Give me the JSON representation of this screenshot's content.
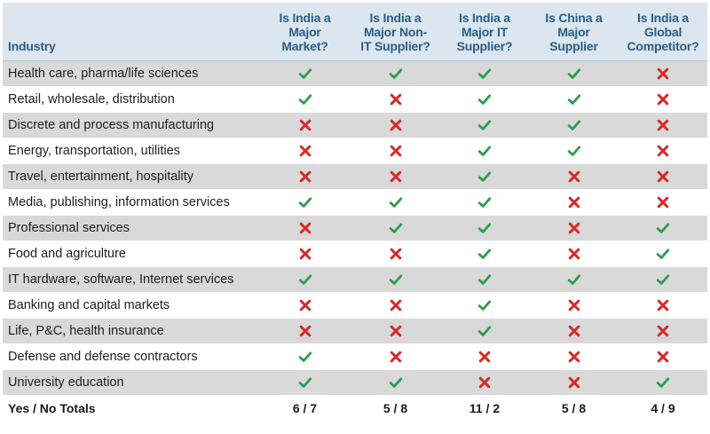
{
  "table": {
    "headers": [
      "Industry",
      "Is India a\nMajor\nMarket?",
      "Is India a\nMajor Non-\nIT Supplier?",
      "Is India a\nMajor IT\nSupplier?",
      "Is China a\nMajor\nSupplier",
      "Is India a\nGlobal\nCompetitor?"
    ],
    "rows": [
      {
        "industry": "Health care, pharma/life sciences",
        "marks": [
          "yes",
          "yes",
          "yes",
          "yes",
          "no"
        ]
      },
      {
        "industry": "Retail, wholesale, distribution",
        "marks": [
          "yes",
          "no",
          "yes",
          "yes",
          "no"
        ]
      },
      {
        "industry": "Discrete and process manufacturing",
        "marks": [
          "no",
          "no",
          "yes",
          "yes",
          "no"
        ]
      },
      {
        "industry": "Energy, transportation, utilities",
        "marks": [
          "no",
          "no",
          "yes",
          "yes",
          "no"
        ]
      },
      {
        "industry": "Travel, entertainment, hospitality",
        "marks": [
          "no",
          "no",
          "yes",
          "no",
          "no"
        ]
      },
      {
        "industry": "Media, publishing, information services",
        "marks": [
          "yes",
          "yes",
          "yes",
          "no",
          "no"
        ]
      },
      {
        "industry": "Professional services",
        "marks": [
          "no",
          "yes",
          "yes",
          "no",
          "yes"
        ]
      },
      {
        "industry": "Food and agriculture",
        "marks": [
          "no",
          "no",
          "yes",
          "no",
          "yes"
        ]
      },
      {
        "industry": "IT hardware, software, Internet services",
        "marks": [
          "yes",
          "yes",
          "yes",
          "yes",
          "yes"
        ]
      },
      {
        "industry": "Banking and capital markets",
        "marks": [
          "no",
          "no",
          "yes",
          "no",
          "no"
        ]
      },
      {
        "industry": "Life, P&C, health insurance",
        "marks": [
          "no",
          "no",
          "yes",
          "no",
          "no"
        ]
      },
      {
        "industry": "Defense and defense contractors",
        "marks": [
          "yes",
          "no",
          "no",
          "no",
          "no"
        ]
      },
      {
        "industry": "University education",
        "marks": [
          "yes",
          "yes",
          "no",
          "no",
          "yes"
        ]
      }
    ],
    "totals_label": "Yes / No Totals",
    "totals": [
      "6 / 7",
      "5 / 8",
      "11 / 2",
      "5 / 8",
      "4 / 9"
    ]
  },
  "icons": {
    "yes": "check-icon",
    "no": "cross-icon"
  },
  "colors": {
    "header_text": "#2b5d88",
    "header_bg": "#dbe6ee",
    "stripe": "#d9d9d9",
    "check": "#2e9b4e",
    "cross": "#d42b2b"
  }
}
